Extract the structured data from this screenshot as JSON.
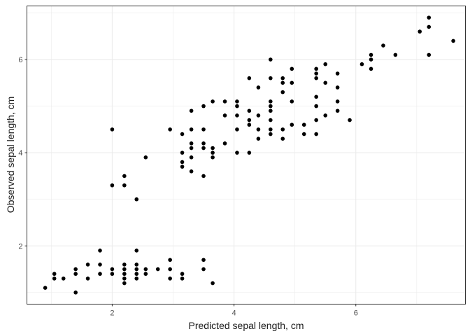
{
  "chart_data": {
    "type": "scatter",
    "xlabel": "Predicted sepal length, cm",
    "ylabel": "Observed sepal length, cm",
    "xlim": [
      0.6,
      7.8
    ],
    "ylim": [
      0.75,
      7.15
    ],
    "xticks": [
      2,
      4,
      6
    ],
    "yticks": [
      2,
      4,
      6
    ],
    "xminor": [
      1,
      3,
      5,
      7
    ],
    "yminor": [
      1,
      3,
      5,
      7
    ],
    "grid": true,
    "point_color": "#000000",
    "points": [
      [
        0.9,
        1.1
      ],
      [
        1.05,
        1.3
      ],
      [
        1.05,
        1.4
      ],
      [
        1.2,
        1.3
      ],
      [
        1.4,
        1.0
      ],
      [
        1.4,
        1.4
      ],
      [
        1.4,
        1.5
      ],
      [
        1.6,
        1.3
      ],
      [
        1.6,
        1.6
      ],
      [
        1.8,
        1.4
      ],
      [
        1.8,
        1.6
      ],
      [
        1.8,
        1.9
      ],
      [
        2.0,
        1.4
      ],
      [
        2.0,
        1.5
      ],
      [
        2.2,
        1.2
      ],
      [
        2.2,
        1.3
      ],
      [
        2.2,
        1.4
      ],
      [
        2.2,
        1.5
      ],
      [
        2.2,
        1.6
      ],
      [
        2.4,
        1.3
      ],
      [
        2.4,
        1.4
      ],
      [
        2.4,
        1.5
      ],
      [
        2.4,
        1.6
      ],
      [
        2.4,
        1.9
      ],
      [
        2.55,
        1.4
      ],
      [
        2.55,
        1.5
      ],
      [
        2.75,
        1.5
      ],
      [
        2.95,
        1.3
      ],
      [
        2.95,
        1.5
      ],
      [
        2.95,
        1.7
      ],
      [
        3.15,
        1.3
      ],
      [
        3.15,
        1.4
      ],
      [
        3.5,
        1.5
      ],
      [
        3.5,
        1.7
      ],
      [
        3.65,
        1.2
      ],
      [
        2.0,
        3.3
      ],
      [
        2.0,
        4.5
      ],
      [
        2.2,
        3.3
      ],
      [
        2.2,
        3.5
      ],
      [
        2.4,
        3.0
      ],
      [
        2.55,
        3.9
      ],
      [
        2.95,
        4.5
      ],
      [
        3.15,
        3.7
      ],
      [
        3.15,
        3.8
      ],
      [
        3.15,
        4.0
      ],
      [
        3.15,
        4.4
      ],
      [
        3.3,
        3.6
      ],
      [
        3.3,
        3.9
      ],
      [
        3.3,
        4.1
      ],
      [
        3.3,
        4.2
      ],
      [
        3.3,
        4.5
      ],
      [
        3.3,
        4.9
      ],
      [
        3.5,
        3.5
      ],
      [
        3.5,
        4.1
      ],
      [
        3.5,
        4.2
      ],
      [
        3.5,
        4.5
      ],
      [
        3.5,
        5.0
      ],
      [
        3.65,
        3.9
      ],
      [
        3.65,
        4.0
      ],
      [
        3.65,
        4.1
      ],
      [
        3.65,
        5.1
      ],
      [
        3.85,
        4.2
      ],
      [
        3.85,
        4.8
      ],
      [
        3.85,
        5.1
      ],
      [
        4.05,
        4.0
      ],
      [
        4.05,
        4.5
      ],
      [
        4.05,
        4.8
      ],
      [
        4.05,
        5.0
      ],
      [
        4.05,
        5.1
      ],
      [
        4.25,
        4.0
      ],
      [
        4.25,
        4.6
      ],
      [
        4.25,
        4.7
      ],
      [
        4.25,
        4.9
      ],
      [
        4.25,
        5.6
      ],
      [
        4.4,
        4.3
      ],
      [
        4.4,
        4.5
      ],
      [
        4.4,
        4.8
      ],
      [
        4.4,
        5.4
      ],
      [
        4.6,
        4.4
      ],
      [
        4.6,
        4.5
      ],
      [
        4.6,
        4.7
      ],
      [
        4.6,
        4.9
      ],
      [
        4.6,
        5.0
      ],
      [
        4.6,
        5.1
      ],
      [
        4.6,
        5.6
      ],
      [
        4.6,
        6.0
      ],
      [
        4.8,
        4.3
      ],
      [
        4.8,
        4.5
      ],
      [
        4.8,
        5.3
      ],
      [
        4.8,
        5.5
      ],
      [
        4.8,
        5.6
      ],
      [
        4.95,
        4.6
      ],
      [
        4.95,
        5.1
      ],
      [
        4.95,
        5.5
      ],
      [
        4.95,
        5.8
      ],
      [
        5.15,
        4.4
      ],
      [
        5.15,
        4.6
      ],
      [
        5.35,
        4.4
      ],
      [
        5.35,
        4.7
      ],
      [
        5.35,
        5.0
      ],
      [
        5.35,
        5.2
      ],
      [
        5.35,
        5.6
      ],
      [
        5.35,
        5.7
      ],
      [
        5.35,
        5.8
      ],
      [
        5.5,
        4.8
      ],
      [
        5.5,
        5.5
      ],
      [
        5.5,
        5.9
      ],
      [
        5.7,
        4.9
      ],
      [
        5.7,
        5.1
      ],
      [
        5.7,
        5.4
      ],
      [
        5.7,
        5.7
      ],
      [
        5.9,
        4.7
      ],
      [
        6.1,
        5.9
      ],
      [
        6.25,
        5.8
      ],
      [
        6.25,
        6.0
      ],
      [
        6.25,
        6.1
      ],
      [
        6.45,
        6.3
      ],
      [
        6.65,
        6.1
      ],
      [
        7.05,
        6.6
      ],
      [
        7.2,
        6.1
      ],
      [
        7.2,
        6.7
      ],
      [
        7.2,
        6.9
      ],
      [
        7.6,
        6.4
      ]
    ]
  }
}
